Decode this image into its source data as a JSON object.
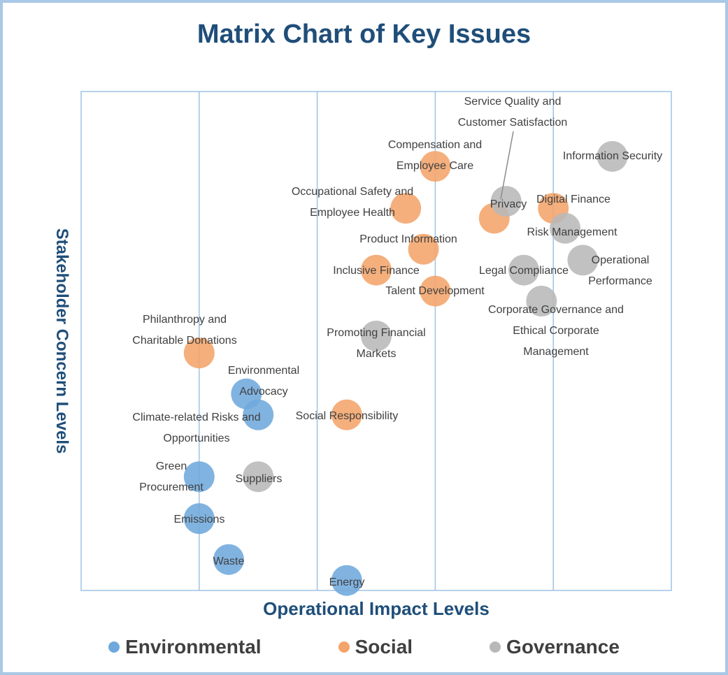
{
  "chart_data": {
    "type": "scatter",
    "title": "Matrix Chart of Key Issues",
    "xlabel": "Operational Impact Levels",
    "ylabel": "Stakeholder Concern Levels",
    "xlim": [
      0,
      5
    ],
    "ylim": [
      0,
      5
    ],
    "grid": "vertical lines at x = 1, 2, 3, 4",
    "legend_placement": "bottom",
    "series": [
      {
        "name": "Environmental",
        "color": "#6fa8dc",
        "points": [
          {
            "label": "Environmental Advocacy",
            "x": 1.4,
            "y": 1.97
          },
          {
            "label": "Climate-related Risks and Opportunities",
            "x": 1.5,
            "y": 1.76
          },
          {
            "label": "Green Procurement",
            "x": 1.0,
            "y": 1.14
          },
          {
            "label": "Emissions",
            "x": 1.0,
            "y": 0.72
          },
          {
            "label": "Waste",
            "x": 1.25,
            "y": 0.31
          },
          {
            "label": "Energy",
            "x": 2.25,
            "y": 0.1
          }
        ]
      },
      {
        "name": "Social",
        "color": "#f4a46a",
        "points": [
          {
            "label": "Compensation and Employee Care",
            "x": 3.0,
            "y": 4.25
          },
          {
            "label": "Occupational Safety and Employee Health",
            "x": 2.75,
            "y": 3.83
          },
          {
            "label": "Digital Finance",
            "x": 4.0,
            "y": 3.83
          },
          {
            "label": "",
            "x": 3.5,
            "y": 3.73
          },
          {
            "label": "Product Information",
            "x": 2.9,
            "y": 3.42
          },
          {
            "label": "Inclusive Finance",
            "x": 2.5,
            "y": 3.21
          },
          {
            "label": "Talent Development",
            "x": 3.0,
            "y": 3.0
          },
          {
            "label": "Philanthropy and Charitable Donations",
            "x": 1.0,
            "y": 2.38
          },
          {
            "label": "Social Responsibility",
            "x": 2.25,
            "y": 1.76
          }
        ]
      },
      {
        "name": "Governance",
        "color": "#b8b8b8",
        "points": [
          {
            "label": "Information Security",
            "x": 4.5,
            "y": 4.35
          },
          {
            "label": "Privacy",
            "x": 3.6,
            "y": 3.9
          },
          {
            "label": "Risk Management",
            "x": 4.1,
            "y": 3.63
          },
          {
            "label": "Operational Performance",
            "x": 4.25,
            "y": 3.31
          },
          {
            "label": "Legal Compliance",
            "x": 3.75,
            "y": 3.21
          },
          {
            "label": "Corporate Governance and Ethical Corporate Management",
            "x": 3.9,
            "y": 2.9
          },
          {
            "label": "Promoting Financial Markets",
            "x": 2.5,
            "y": 2.55
          },
          {
            "label": "Suppliers",
            "x": 1.5,
            "y": 1.14
          }
        ]
      }
    ],
    "annotations": [
      {
        "text": "Service Quality and Customer Satisfaction",
        "x": 3.65,
        "y": 4.9,
        "callout_to": {
          "x": 3.6,
          "y": 3.9
        }
      }
    ],
    "label_texts": {
      "env_advocacy": [
        "Environmental",
        "Advocacy"
      ],
      "climate": [
        "Climate-related Risks and",
        "Opportunities"
      ],
      "green": [
        "Green",
        "Procurement"
      ],
      "emissions": [
        "Emissions"
      ],
      "waste": [
        "Waste"
      ],
      "energy": [
        "Energy"
      ],
      "compensation": [
        "Compensation and",
        "Employee Care"
      ],
      "occupational": [
        "Occupational Safety and",
        "Employee Health"
      ],
      "digital": [
        "Digital Finance"
      ],
      "product": [
        "Product Information"
      ],
      "inclusive": [
        "Inclusive Finance"
      ],
      "talent": [
        "Talent Development"
      ],
      "philanthropy": [
        "Philanthropy and",
        "Charitable Donations"
      ],
      "social_resp": [
        "Social Responsibility"
      ],
      "info_sec": [
        "Information Security"
      ],
      "privacy": [
        "Privacy"
      ],
      "risk": [
        "Risk Management"
      ],
      "operational": [
        "Operational",
        "Performance"
      ],
      "legal": [
        "Legal Compliance"
      ],
      "corp_gov": [
        "Corporate Governance and",
        "Ethical Corporate",
        "Management"
      ],
      "promoting": [
        "Promoting Financial",
        "Markets"
      ],
      "suppliers": [
        "Suppliers"
      ],
      "service_quality": [
        "Service Quality and",
        "Customer Satisfaction"
      ]
    }
  }
}
